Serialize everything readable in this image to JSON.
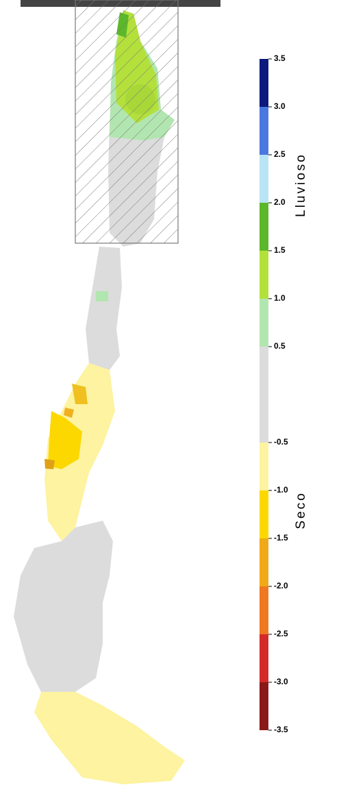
{
  "legend": {
    "range": [
      -3.5,
      3.5
    ],
    "ticks": [
      {
        "value": 3.5,
        "label": "3.5"
      },
      {
        "value": 3.0,
        "label": "3.0"
      },
      {
        "value": 2.5,
        "label": "2.5"
      },
      {
        "value": 2.0,
        "label": "2.0"
      },
      {
        "value": 1.5,
        "label": "1.5"
      },
      {
        "value": 1.0,
        "label": "1.0"
      },
      {
        "value": 0.5,
        "label": "0.5"
      },
      {
        "value": -0.5,
        "label": "-0.5"
      },
      {
        "value": -1.0,
        "label": "-1.0"
      },
      {
        "value": -1.5,
        "label": "-1.5"
      },
      {
        "value": -2.0,
        "label": "-2.0"
      },
      {
        "value": -2.5,
        "label": "-2.5"
      },
      {
        "value": -3.0,
        "label": "-3.0"
      },
      {
        "value": -3.5,
        "label": "-3.5"
      }
    ],
    "segments": [
      {
        "from": 3.0,
        "to": 3.5,
        "color": "#0b1a7c"
      },
      {
        "from": 2.5,
        "to": 3.0,
        "color": "#4a78e0"
      },
      {
        "from": 2.0,
        "to": 2.5,
        "color": "#b8e4f5"
      },
      {
        "from": 1.5,
        "to": 2.0,
        "color": "#5cb82a"
      },
      {
        "from": 1.0,
        "to": 1.5,
        "color": "#b4e03c"
      },
      {
        "from": 0.5,
        "to": 1.0,
        "color": "#b2e6b0"
      },
      {
        "from": -0.5,
        "to": 0.5,
        "color": "#dcdcdc"
      },
      {
        "from": -1.0,
        "to": -0.5,
        "color": "#fdf3a0"
      },
      {
        "from": -1.5,
        "to": -1.0,
        "color": "#fcd800"
      },
      {
        "from": -2.0,
        "to": -1.5,
        "color": "#f0aa18"
      },
      {
        "from": -2.5,
        "to": -2.0,
        "color": "#f07820"
      },
      {
        "from": -3.0,
        "to": -2.5,
        "color": "#d42a2a"
      },
      {
        "from": -3.5,
        "to": -3.0,
        "color": "#8a1a1a"
      }
    ],
    "wet_label": "Lluvioso",
    "dry_label": "Seco"
  }
}
